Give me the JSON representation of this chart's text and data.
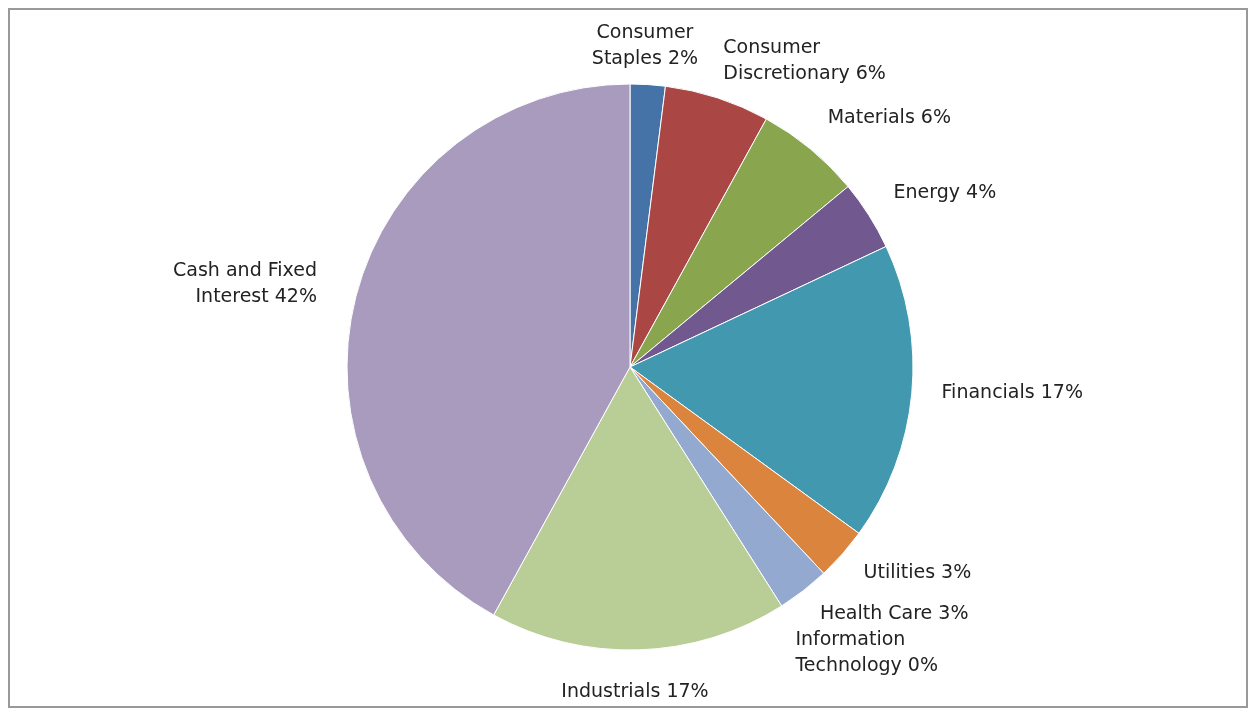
{
  "chart_data": {
    "type": "pie",
    "categories": [
      "Consumer Staples",
      "Consumer Discretionary",
      "Materials",
      "Energy",
      "Financials",
      "Utilities",
      "Health Care",
      "Information Technology",
      "Industrials",
      "Cash and Fixed Interest"
    ],
    "values": [
      2,
      6,
      6,
      4,
      17,
      3,
      3,
      0,
      17,
      42
    ],
    "colors": [
      "#4572a7",
      "#aa4643",
      "#89a54e",
      "#71588f",
      "#4198af",
      "#db843d",
      "#93a9cf",
      "#d19392",
      "#b9cd96",
      "#a99bbd"
    ],
    "value_labels": [
      "2%",
      "6%",
      "6%",
      "4%",
      "17%",
      "3%",
      "3%",
      "0%",
      "17%",
      "42%"
    ],
    "legend": false
  }
}
